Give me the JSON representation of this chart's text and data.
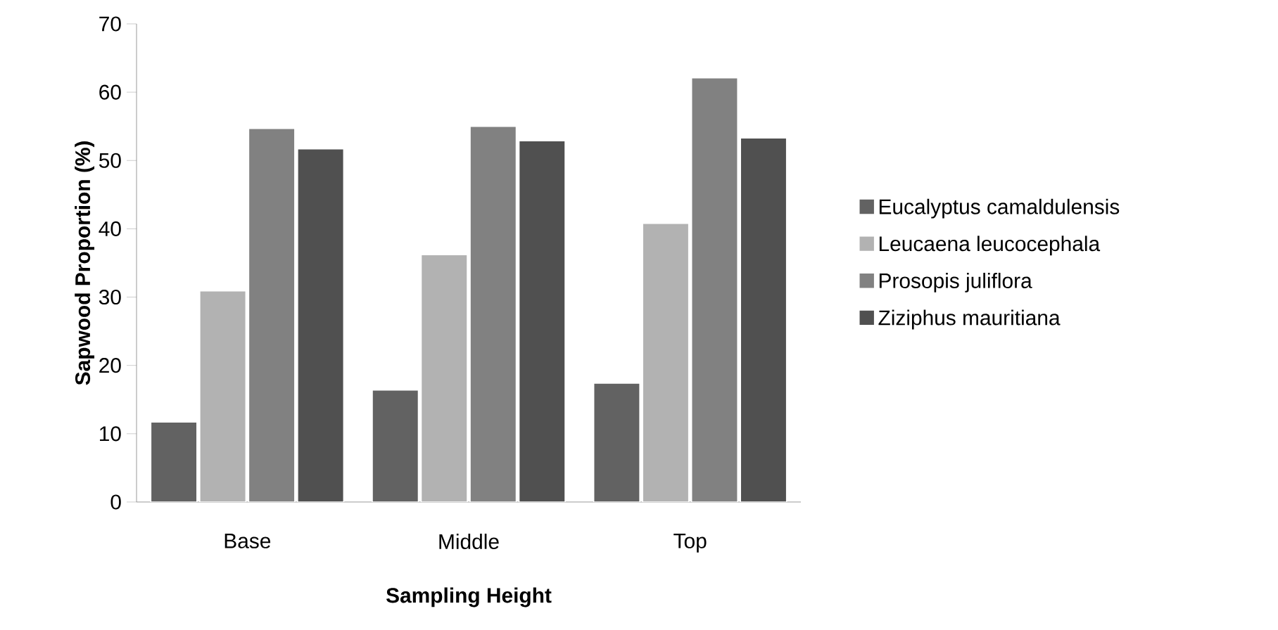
{
  "chart_data": {
    "type": "bar",
    "xlabel": "Sampling Height",
    "ylabel": "Sapwood Proportion (%)",
    "categories": [
      "Base",
      "Middle",
      "Top"
    ],
    "series": [
      {
        "name": "Eucalyptus camaldulensis",
        "color": "#626262",
        "values": [
          11.7,
          16.4,
          17.4
        ]
      },
      {
        "name": "Leucaena leucocephala",
        "color": "#b2b2b2",
        "values": [
          30.9,
          36.2,
          40.8
        ]
      },
      {
        "name": "Prosopis juliflora",
        "color": "#818181",
        "values": [
          54.7,
          55.0,
          62.1
        ]
      },
      {
        "name": "Ziziphus mauritiana",
        "color": "#505050",
        "values": [
          51.7,
          52.9,
          53.3
        ]
      }
    ],
    "ylim": [
      0,
      70
    ],
    "yticks": [
      0,
      10,
      20,
      30,
      40,
      50,
      60,
      70
    ],
    "grid": false,
    "legend": "right"
  }
}
